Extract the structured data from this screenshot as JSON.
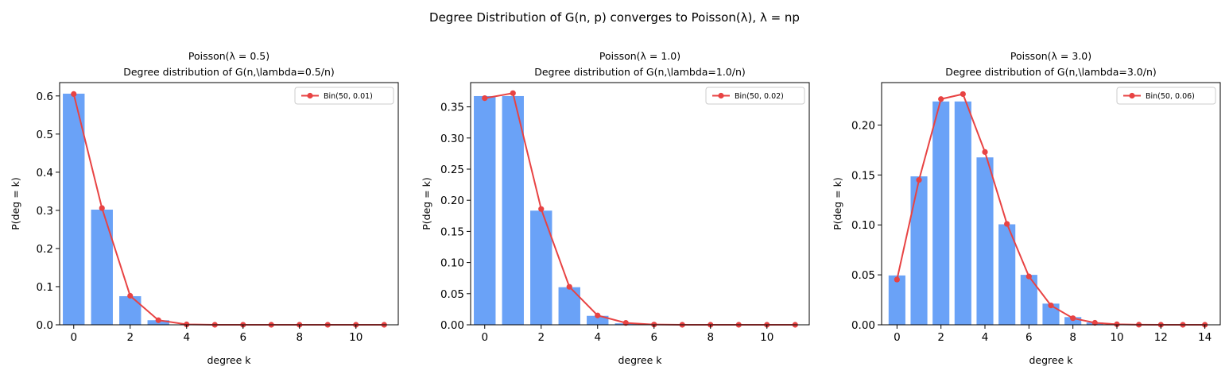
{
  "figure": {
    "suptitle": "Degree Distribution of G(n, p) converges to Poisson(λ), λ = np"
  },
  "chart_data": [
    {
      "type": "bar",
      "title_line1": "Poisson(λ = 0.5)",
      "title_line2": "Degree distribution of G(n,\\lambda=0.5/n)",
      "xlabel": "degree k",
      "ylabel": "P(deg = k)",
      "xlim": [
        -0.5,
        11.5
      ],
      "ylim": [
        0,
        0.635
      ],
      "xticks": [
        0,
        2,
        4,
        6,
        8,
        10
      ],
      "yticks": [
        0.0,
        0.1,
        0.2,
        0.3,
        0.4,
        0.5,
        0.6
      ],
      "ytick_labels": [
        "0.0",
        "0.1",
        "0.2",
        "0.3",
        "0.4",
        "0.5",
        "0.6"
      ],
      "bars": {
        "color": "#6aa2f7",
        "x": [
          0,
          1,
          2,
          3,
          4,
          5,
          6,
          7,
          8,
          9,
          10,
          11
        ],
        "values": [
          0.607,
          0.303,
          0.076,
          0.013,
          0.002,
          0.0,
          0.0,
          0.0,
          0.0,
          0.0,
          0.0,
          0.0
        ]
      },
      "series": [
        {
          "name": "Bin(50, 0.01)",
          "color": "#e84343",
          "x": [
            0,
            1,
            2,
            3,
            4,
            5,
            6,
            7,
            8,
            9,
            10,
            11
          ],
          "values": [
            0.605,
            0.306,
            0.076,
            0.012,
            0.001,
            0.0,
            0.0,
            0.0,
            0.0,
            0.0,
            0.0,
            0.0
          ]
        }
      ],
      "legend_position": "top-right"
    },
    {
      "type": "bar",
      "title_line1": "Poisson(λ = 1.0)",
      "title_line2": "Degree distribution of G(n,\\lambda=1.0/n)",
      "xlabel": "degree k",
      "ylabel": "P(deg = k)",
      "xlim": [
        -0.5,
        11.5
      ],
      "ylim": [
        0,
        0.389
      ],
      "xticks": [
        0,
        2,
        4,
        6,
        8,
        10
      ],
      "yticks": [
        0.0,
        0.05,
        0.1,
        0.15,
        0.2,
        0.25,
        0.3,
        0.35
      ],
      "ytick_labels": [
        "0.00",
        "0.05",
        "0.10",
        "0.15",
        "0.20",
        "0.25",
        "0.30",
        "0.35"
      ],
      "bars": {
        "color": "#6aa2f7",
        "x": [
          0,
          1,
          2,
          3,
          4,
          5,
          6,
          7,
          8,
          9,
          10,
          11
        ],
        "values": [
          0.368,
          0.368,
          0.184,
          0.061,
          0.015,
          0.003,
          0.0005,
          0.0,
          0.0,
          0.0,
          0.0,
          0.0
        ]
      },
      "series": [
        {
          "name": "Bin(50, 0.02)",
          "color": "#e84343",
          "x": [
            0,
            1,
            2,
            3,
            4,
            5,
            6,
            7,
            8,
            9,
            10,
            11
          ],
          "values": [
            0.364,
            0.372,
            0.186,
            0.061,
            0.015,
            0.003,
            0.0004,
            0.0,
            0.0,
            0.0,
            0.0,
            0.0
          ]
        }
      ],
      "legend_position": "top-right"
    },
    {
      "type": "bar",
      "title_line1": "Poisson(λ = 3.0)",
      "title_line2": "Degree distribution of G(n,\\lambda=3.0/n)",
      "xlabel": "degree k",
      "ylabel": "P(deg = k)",
      "xlim": [
        -0.7,
        14.7
      ],
      "ylim": [
        0,
        0.2425
      ],
      "xticks": [
        0,
        2,
        4,
        6,
        8,
        10,
        12,
        14
      ],
      "yticks": [
        0.0,
        0.05,
        0.1,
        0.15,
        0.2
      ],
      "ytick_labels": [
        "0.00",
        "0.05",
        "0.10",
        "0.15",
        "0.20"
      ],
      "bars": {
        "color": "#6aa2f7",
        "x": [
          0,
          1,
          2,
          3,
          4,
          5,
          6,
          7,
          8,
          9,
          10,
          11,
          12,
          13,
          14
        ],
        "values": [
          0.0498,
          0.149,
          0.224,
          0.224,
          0.168,
          0.101,
          0.0504,
          0.0216,
          0.0081,
          0.0027,
          0.0008,
          0.0002,
          0.0001,
          0.0,
          0.0
        ]
      },
      "series": [
        {
          "name": "Bin(50, 0.06)",
          "color": "#e84343",
          "x": [
            0,
            1,
            2,
            3,
            4,
            5,
            6,
            7,
            8,
            9,
            10,
            11,
            12,
            13,
            14
          ],
          "values": [
            0.0453,
            0.145,
            0.226,
            0.231,
            0.173,
            0.101,
            0.0484,
            0.0194,
            0.0066,
            0.002,
            0.0005,
            0.0001,
            0.0,
            0.0,
            0.0
          ]
        }
      ],
      "legend_position": "top-right"
    }
  ]
}
